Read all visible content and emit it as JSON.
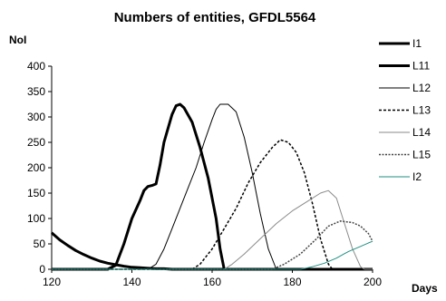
{
  "chart_data": {
    "type": "line",
    "title": "Numbers of entities, GFDL5564",
    "xlabel": "Days",
    "ylabel": "NoI",
    "xlim": [
      120,
      200
    ],
    "ylim": [
      0,
      400
    ],
    "xticks": [
      120,
      140,
      160,
      180,
      200
    ],
    "yticks": [
      0,
      50,
      100,
      150,
      200,
      250,
      300,
      350,
      400
    ],
    "grid": false,
    "legend_position": "right",
    "series": [
      {
        "name": "I1",
        "style": "thick-solid",
        "color": "#000000",
        "points": [
          [
            120,
            72
          ],
          [
            122,
            58
          ],
          [
            124,
            47
          ],
          [
            126,
            37
          ],
          [
            128,
            29
          ],
          [
            130,
            22
          ],
          [
            132,
            16
          ],
          [
            134,
            12
          ],
          [
            136,
            9
          ],
          [
            138,
            6
          ],
          [
            140,
            4
          ],
          [
            142,
            3
          ],
          [
            144,
            2
          ],
          [
            146,
            1
          ],
          [
            148,
            1
          ],
          [
            150,
            0
          ],
          [
            200,
            0
          ]
        ]
      },
      {
        "name": "L11",
        "style": "thick-solid",
        "color": "#000000",
        "points": [
          [
            120,
            0
          ],
          [
            134,
            0
          ],
          [
            136,
            8
          ],
          [
            138,
            50
          ],
          [
            140,
            100
          ],
          [
            142,
            135
          ],
          [
            143,
            155
          ],
          [
            144,
            163
          ],
          [
            145,
            165
          ],
          [
            146,
            168
          ],
          [
            147,
            205
          ],
          [
            148,
            250
          ],
          [
            150,
            305
          ],
          [
            151,
            322
          ],
          [
            152,
            325
          ],
          [
            153,
            318
          ],
          [
            155,
            290
          ],
          [
            157,
            240
          ],
          [
            159,
            180
          ],
          [
            161,
            100
          ],
          [
            162,
            40
          ],
          [
            163,
            0
          ],
          [
            200,
            0
          ]
        ]
      },
      {
        "name": "L12",
        "style": "thin-solid",
        "color": "#000000",
        "points": [
          [
            120,
            0
          ],
          [
            144,
            0
          ],
          [
            146,
            10
          ],
          [
            148,
            40
          ],
          [
            150,
            80
          ],
          [
            152,
            120
          ],
          [
            154,
            160
          ],
          [
            156,
            200
          ],
          [
            158,
            250
          ],
          [
            160,
            295
          ],
          [
            161,
            315
          ],
          [
            162,
            325
          ],
          [
            164,
            325
          ],
          [
            166,
            310
          ],
          [
            168,
            260
          ],
          [
            170,
            190
          ],
          [
            172,
            110
          ],
          [
            174,
            40
          ],
          [
            176,
            0
          ],
          [
            200,
            0
          ]
        ]
      },
      {
        "name": "L13",
        "style": "dashed",
        "color": "#000000",
        "points": [
          [
            120,
            0
          ],
          [
            155,
            0
          ],
          [
            157,
            10
          ],
          [
            160,
            40
          ],
          [
            163,
            80
          ],
          [
            166,
            120
          ],
          [
            169,
            170
          ],
          [
            172,
            210
          ],
          [
            175,
            240
          ],
          [
            177,
            255
          ],
          [
            179,
            250
          ],
          [
            181,
            230
          ],
          [
            183,
            190
          ],
          [
            185,
            130
          ],
          [
            187,
            60
          ],
          [
            189,
            10
          ],
          [
            190,
            0
          ],
          [
            200,
            0
          ]
        ]
      },
      {
        "name": "L14",
        "style": "thin-solid",
        "color": "#8a8a8a",
        "points": [
          [
            120,
            0
          ],
          [
            163,
            0
          ],
          [
            165,
            10
          ],
          [
            168,
            30
          ],
          [
            172,
            60
          ],
          [
            176,
            90
          ],
          [
            180,
            115
          ],
          [
            184,
            135
          ],
          [
            187,
            150
          ],
          [
            189,
            155
          ],
          [
            191,
            140
          ],
          [
            193,
            90
          ],
          [
            195,
            40
          ],
          [
            197,
            5
          ],
          [
            198,
            0
          ],
          [
            200,
            0
          ]
        ]
      },
      {
        "name": "L15",
        "style": "dashed-fine",
        "color": "#444444",
        "points": [
          [
            120,
            0
          ],
          [
            175,
            0
          ],
          [
            178,
            10
          ],
          [
            182,
            30
          ],
          [
            186,
            60
          ],
          [
            189,
            85
          ],
          [
            192,
            95
          ],
          [
            195,
            92
          ],
          [
            197,
            85
          ],
          [
            199,
            70
          ],
          [
            200,
            55
          ]
        ]
      },
      {
        "name": "I2",
        "style": "thin-solid",
        "color": "#1f8f82",
        "points": [
          [
            120,
            0
          ],
          [
            182,
            0
          ],
          [
            185,
            5
          ],
          [
            188,
            12
          ],
          [
            191,
            22
          ],
          [
            194,
            35
          ],
          [
            197,
            45
          ],
          [
            199,
            52
          ],
          [
            200,
            55
          ]
        ]
      }
    ]
  }
}
